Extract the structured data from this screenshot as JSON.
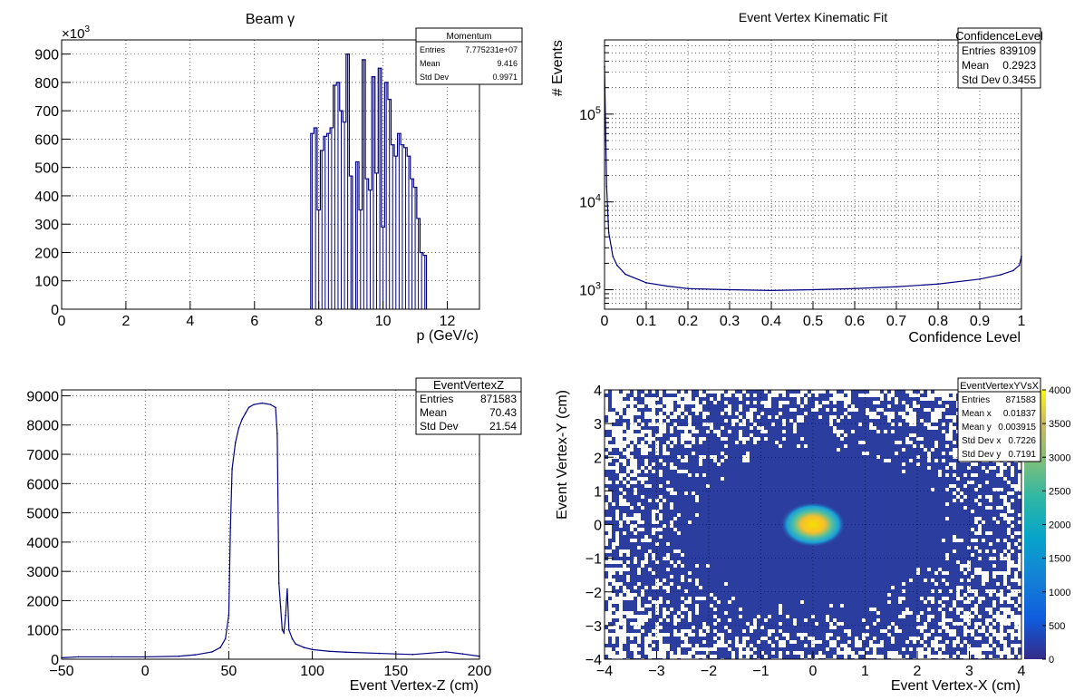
{
  "panels": [
    {
      "title": "Beam γ",
      "xlabel": "p (GeV/c)",
      "ylabel": "",
      "exponent_label": "×10",
      "exponent_power": "3",
      "stats": {
        "name": "Momentum",
        "rows": [
          {
            "label": "Entries",
            "value": "7.775231e+07"
          },
          {
            "label": "Mean",
            "value": "9.416"
          },
          {
            "label": "Std Dev",
            "value": "0.9971"
          }
        ]
      },
      "x_ticks": [
        "0",
        "2",
        "4",
        "6",
        "8",
        "10",
        "12"
      ],
      "y_ticks": [
        "0",
        "100",
        "200",
        "300",
        "400",
        "500",
        "600",
        "700",
        "800",
        "900"
      ]
    },
    {
      "title": "Event Vertex Kinematic Fit",
      "xlabel": "Confidence Level",
      "ylabel": "# Events",
      "stats": {
        "name": "ConfidenceLevel",
        "rows": [
          {
            "label": "Entries",
            "value": "839109"
          },
          {
            "label": "Mean",
            "value": "0.2923"
          },
          {
            "label": "Std Dev",
            "value": "0.3455"
          }
        ]
      },
      "x_ticks": [
        "0",
        "0.1",
        "0.2",
        "0.3",
        "0.4",
        "0.5",
        "0.6",
        "0.7",
        "0.8",
        "0.9",
        "1"
      ],
      "y_ticks_base": "10",
      "y_ticks_exp": [
        "3",
        "4",
        "5"
      ]
    },
    {
      "title": "",
      "xlabel": "Event Vertex-Z (cm)",
      "ylabel": "",
      "stats": {
        "name": "EventVertexZ",
        "rows": [
          {
            "label": "Entries",
            "value": "871583"
          },
          {
            "label": "Mean",
            "value": "70.43"
          },
          {
            "label": "Std Dev",
            "value": "21.54"
          }
        ]
      },
      "x_ticks": [
        "−50",
        "0",
        "50",
        "100",
        "150",
        "200"
      ],
      "y_ticks": [
        "0",
        "1000",
        "2000",
        "3000",
        "4000",
        "5000",
        "6000",
        "7000",
        "8000",
        "9000"
      ]
    },
    {
      "title": "",
      "xlabel": "Event Vertex-X (cm)",
      "ylabel": "Event Vertex-Y (cm)",
      "stats": {
        "name": "EventVertexYVsX",
        "rows": [
          {
            "label": "Entries",
            "value": "871583"
          },
          {
            "label": "Mean x",
            "value": "0.01837"
          },
          {
            "label": "Mean y",
            "value": "0.003915"
          },
          {
            "label": "Std Dev x",
            "value": "0.7226"
          },
          {
            "label": "Std Dev y",
            "value": "0.7191"
          }
        ]
      },
      "x_ticks": [
        "−4",
        "−3",
        "−2",
        "−1",
        "0",
        "1",
        "2",
        "3",
        "4"
      ],
      "y_ticks": [
        "−4",
        "−3",
        "−2",
        "−1",
        "0",
        "1",
        "2",
        "3",
        "4"
      ],
      "z_ticks": [
        "0",
        "500",
        "1000",
        "1500",
        "2000",
        "2500",
        "3000",
        "3500",
        "4000"
      ]
    }
  ],
  "colors": {
    "histogram_line": "#000080",
    "heatmap_background": "#2b3d9e",
    "heatmap_noise": "#ffffff",
    "heatmap_peak": "#f5e000"
  },
  "chart_data": [
    {
      "type": "bar",
      "title": "Beam γ",
      "xlabel": "p (GeV/c)",
      "ylabel": "",
      "y_scale_note": "×10^3",
      "xlim": [
        0,
        13
      ],
      "ylim": [
        0,
        950
      ],
      "x": [
        7.8,
        7.9,
        8.0,
        8.1,
        8.2,
        8.3,
        8.4,
        8.5,
        8.6,
        8.7,
        8.8,
        8.9,
        9.0,
        9.1,
        9.2,
        9.3,
        9.4,
        9.5,
        9.6,
        9.7,
        9.8,
        9.9,
        10.0,
        10.1,
        10.2,
        10.3,
        10.4,
        10.5,
        10.6,
        10.7,
        10.8,
        10.9,
        11.0,
        11.1,
        11.2,
        11.3
      ],
      "values": [
        620,
        640,
        350,
        560,
        610,
        620,
        640,
        790,
        800,
        700,
        660,
        900,
        470,
        0,
        520,
        350,
        880,
        460,
        420,
        820,
        480,
        850,
        290,
        800,
        740,
        580,
        540,
        620,
        580,
        570,
        540,
        460,
        430,
        320,
        200,
        190
      ],
      "grid": true,
      "stats": {
        "name": "Momentum",
        "entries": 77752310,
        "mean": 9.416,
        "std_dev": 0.9971
      }
    },
    {
      "type": "line",
      "title": "Event Vertex Kinematic Fit",
      "xlabel": "Confidence Level",
      "ylabel": "# Events",
      "log_y": true,
      "xlim": [
        0,
        1
      ],
      "ylim": [
        600,
        700000
      ],
      "x": [
        0.0,
        0.005,
        0.01,
        0.02,
        0.03,
        0.05,
        0.1,
        0.15,
        0.2,
        0.3,
        0.4,
        0.5,
        0.6,
        0.7,
        0.8,
        0.9,
        0.95,
        0.98,
        0.995,
        1.0
      ],
      "values": [
        350000,
        15000,
        4500,
        2400,
        1900,
        1500,
        1200,
        1100,
        1030,
        1000,
        980,
        1000,
        1030,
        1080,
        1160,
        1320,
        1480,
        1650,
        1900,
        2400
      ],
      "grid": true,
      "stats": {
        "name": "ConfidenceLevel",
        "entries": 839109,
        "mean": 0.2923,
        "std_dev": 0.3455
      }
    },
    {
      "type": "line",
      "title": "",
      "xlabel": "Event Vertex-Z (cm)",
      "ylabel": "",
      "xlim": [
        -50,
        200
      ],
      "ylim": [
        0,
        9200
      ],
      "x": [
        -50,
        -40,
        -20,
        0,
        20,
        30,
        40,
        45,
        48,
        50,
        51,
        52,
        54,
        56,
        58,
        60,
        62,
        65,
        70,
        75,
        78,
        79,
        80,
        81,
        82,
        83,
        84,
        85,
        86,
        88,
        90,
        95,
        100,
        110,
        120,
        140,
        160,
        180,
        190,
        200
      ],
      "values": [
        50,
        80,
        80,
        80,
        100,
        150,
        250,
        400,
        700,
        1500,
        4500,
        6500,
        7400,
        7900,
        8200,
        8400,
        8600,
        8700,
        8750,
        8700,
        8600,
        7700,
        2600,
        1800,
        1000,
        900,
        1500,
        2400,
        1000,
        700,
        520,
        400,
        330,
        270,
        240,
        200,
        160,
        250,
        180,
        100
      ],
      "grid": true,
      "stats": {
        "name": "EventVertexZ",
        "entries": 871583,
        "mean": 70.43,
        "std_dev": 21.54
      }
    },
    {
      "type": "heatmap",
      "title": "",
      "xlabel": "Event Vertex-X (cm)",
      "ylabel": "Event Vertex-Y (cm)",
      "xlim": [
        -4,
        4
      ],
      "ylim": [
        -4,
        4
      ],
      "zlim": [
        0,
        4000
      ],
      "peak": {
        "x": 0.0,
        "y": 0.0,
        "max_counts": 4000
      },
      "grid": true,
      "stats": {
        "name": "EventVertexYVsX",
        "entries": 871583,
        "mean_x": 0.01837,
        "mean_y": 0.003915,
        "std_dev_x": 0.7226,
        "std_dev_y": 0.7191
      }
    }
  ]
}
